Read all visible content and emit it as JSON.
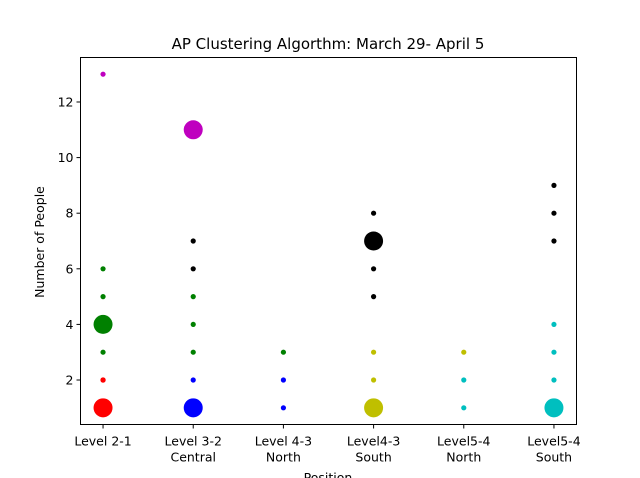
{
  "chart_data": {
    "type": "scatter",
    "title": "AP Clustering Algorthm: March 29- April 5",
    "xlabel": "Position",
    "ylabel": "Number of People",
    "categories": [
      [
        "Level 2-1"
      ],
      [
        "Level 3-2",
        "Central"
      ],
      [
        "Level 4-3",
        "North"
      ],
      [
        "Level4-3",
        "South"
      ],
      [
        "Level5-4",
        "North"
      ],
      [
        "Level5-4",
        "South"
      ]
    ],
    "ylim": [
      0.4,
      13.6
    ],
    "yticks": [
      2,
      4,
      6,
      8,
      10,
      12
    ],
    "grid": false,
    "legend": "none",
    "series": [
      {
        "category_index": 0,
        "color": "#ff0000",
        "points": [
          {
            "y": 1,
            "size": "large"
          },
          {
            "y": 2,
            "size": "small"
          },
          {
            "y": 2,
            "size": "small"
          }
        ]
      },
      {
        "category_index": 0,
        "color": "#008000",
        "points": [
          {
            "y": 4,
            "size": "large"
          },
          {
            "y": 3,
            "size": "small"
          },
          {
            "y": 5,
            "size": "small"
          },
          {
            "y": 6,
            "size": "small"
          }
        ]
      },
      {
        "category_index": 0,
        "color": "#bf00bf",
        "points": [
          {
            "y": 13,
            "size": "small"
          }
        ]
      },
      {
        "category_index": 1,
        "color": "#0000ff",
        "points": [
          {
            "y": 1,
            "size": "large"
          },
          {
            "y": 2,
            "size": "small"
          }
        ]
      },
      {
        "category_index": 1,
        "color": "#008000",
        "points": [
          {
            "y": 3,
            "size": "small"
          },
          {
            "y": 4,
            "size": "small"
          },
          {
            "y": 5,
            "size": "small"
          }
        ]
      },
      {
        "category_index": 1,
        "color": "#000000",
        "points": [
          {
            "y": 6,
            "size": "small"
          },
          {
            "y": 7,
            "size": "small"
          }
        ]
      },
      {
        "category_index": 1,
        "color": "#bf00bf",
        "points": [
          {
            "y": 11,
            "size": "large"
          }
        ]
      },
      {
        "category_index": 2,
        "color": "#0000ff",
        "points": [
          {
            "y": 1,
            "size": "small"
          },
          {
            "y": 2,
            "size": "small"
          }
        ]
      },
      {
        "category_index": 2,
        "color": "#008000",
        "points": [
          {
            "y": 3,
            "size": "small"
          }
        ]
      },
      {
        "category_index": 3,
        "color": "#bfbf00",
        "points": [
          {
            "y": 1,
            "size": "large"
          },
          {
            "y": 2,
            "size": "small"
          },
          {
            "y": 3,
            "size": "small"
          }
        ]
      },
      {
        "category_index": 3,
        "color": "#000000",
        "points": [
          {
            "y": 7,
            "size": "large"
          },
          {
            "y": 5,
            "size": "small"
          },
          {
            "y": 6,
            "size": "small"
          },
          {
            "y": 8,
            "size": "small"
          }
        ]
      },
      {
        "category_index": 4,
        "color": "#00bfbf",
        "points": [
          {
            "y": 1,
            "size": "small"
          },
          {
            "y": 2,
            "size": "small"
          }
        ]
      },
      {
        "category_index": 4,
        "color": "#bfbf00",
        "points": [
          {
            "y": 3,
            "size": "small"
          }
        ]
      },
      {
        "category_index": 5,
        "color": "#00bfbf",
        "points": [
          {
            "y": 1,
            "size": "large"
          },
          {
            "y": 2,
            "size": "small"
          },
          {
            "y": 3,
            "size": "small"
          },
          {
            "y": 4,
            "size": "small"
          }
        ]
      },
      {
        "category_index": 5,
        "color": "#000000",
        "points": [
          {
            "y": 7,
            "size": "small"
          },
          {
            "y": 8,
            "size": "small"
          },
          {
            "y": 9,
            "size": "small"
          }
        ]
      }
    ]
  }
}
